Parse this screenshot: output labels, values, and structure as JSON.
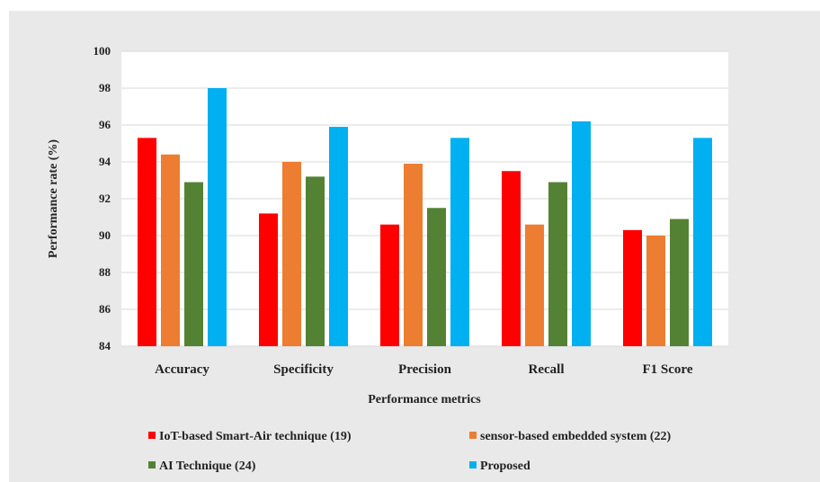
{
  "chart_data": {
    "type": "bar",
    "title": "",
    "xlabel": "Performance metrics",
    "ylabel": "Performance rate (%)",
    "ylim": [
      84,
      100
    ],
    "yticks": [
      84,
      86,
      88,
      90,
      92,
      94,
      96,
      98,
      100
    ],
    "grid": true,
    "legend_position": "bottom",
    "categories": [
      "Accuracy",
      "Specificity",
      "Precision",
      "Recall",
      "F1 Score"
    ],
    "series": [
      {
        "name": "IoT-based Smart-Air technique (19)",
        "color": "#ff0000",
        "values": [
          95.3,
          91.2,
          90.6,
          93.5,
          90.3
        ]
      },
      {
        "name": "sensor-based embedded system (22)",
        "color": "#ed7d31",
        "values": [
          94.4,
          94.0,
          93.9,
          90.6,
          90.0
        ]
      },
      {
        "name": "AI Technique (24)",
        "color": "#548235",
        "values": [
          92.9,
          93.2,
          91.5,
          92.9,
          90.9
        ]
      },
      {
        "name": "Proposed",
        "color": "#00b0f0",
        "values": [
          98.0,
          95.9,
          95.3,
          96.2,
          95.3
        ]
      }
    ]
  }
}
